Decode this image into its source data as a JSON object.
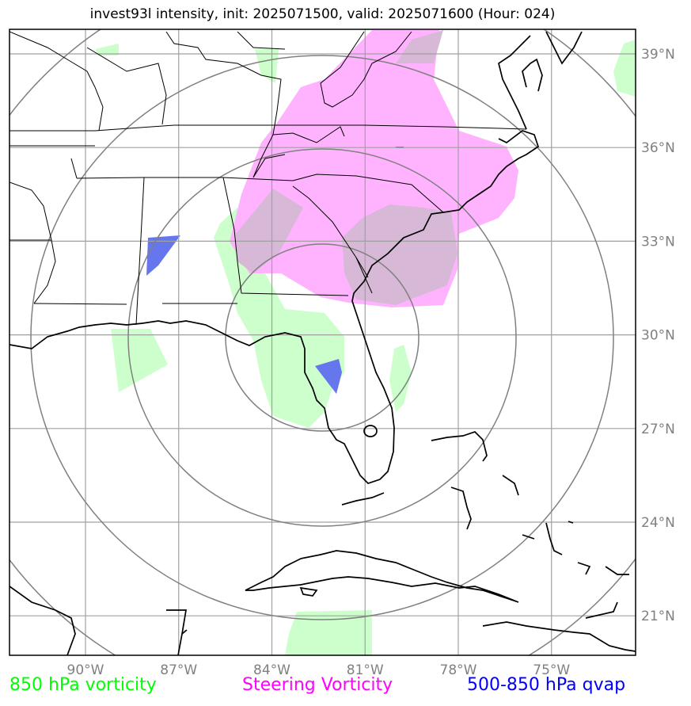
{
  "title": "invest93l intensity, init: 2025071500, valid: 2025071600 (Hour: 024)",
  "lon_ticks": [
    {
      "lon": -90,
      "label": "90°W"
    },
    {
      "lon": -87,
      "label": "87°W"
    },
    {
      "lon": -84,
      "label": "84°W"
    },
    {
      "lon": -81,
      "label": "81°W"
    },
    {
      "lon": -78,
      "label": "78°W"
    },
    {
      "lon": -75,
      "label": "75°W"
    }
  ],
  "lat_ticks": [
    {
      "lat": 39,
      "label": "39°N"
    },
    {
      "lat": 36,
      "label": "36°N"
    },
    {
      "lat": 33,
      "label": "33°N"
    },
    {
      "lat": 30,
      "label": "30°N"
    },
    {
      "lat": 27,
      "label": "27°N"
    },
    {
      "lat": 24,
      "label": "24°N"
    },
    {
      "lat": 21,
      "label": "21°N"
    }
  ],
  "map_extent": {
    "lon_min": -92.6,
    "lon_max": -72.4,
    "lat_min": 19.75,
    "lat_max": 39.8
  },
  "range_rings": {
    "center_lon": -82.0,
    "center_lat": 29.5,
    "radii_deg": [
      3,
      6,
      9
    ]
  },
  "legend": [
    {
      "label": "850 hPa vorticity",
      "color": "#00ff00"
    },
    {
      "label": "Steering Vorticity",
      "color": "#ff00ff"
    },
    {
      "label": "500-850 hPa qvap",
      "color": "#0000ff"
    }
  ],
  "fields": {
    "vort850_color": "#ccffcc",
    "steering_color": "#ffb3ff",
    "qvap_color": "#6677ee"
  }
}
